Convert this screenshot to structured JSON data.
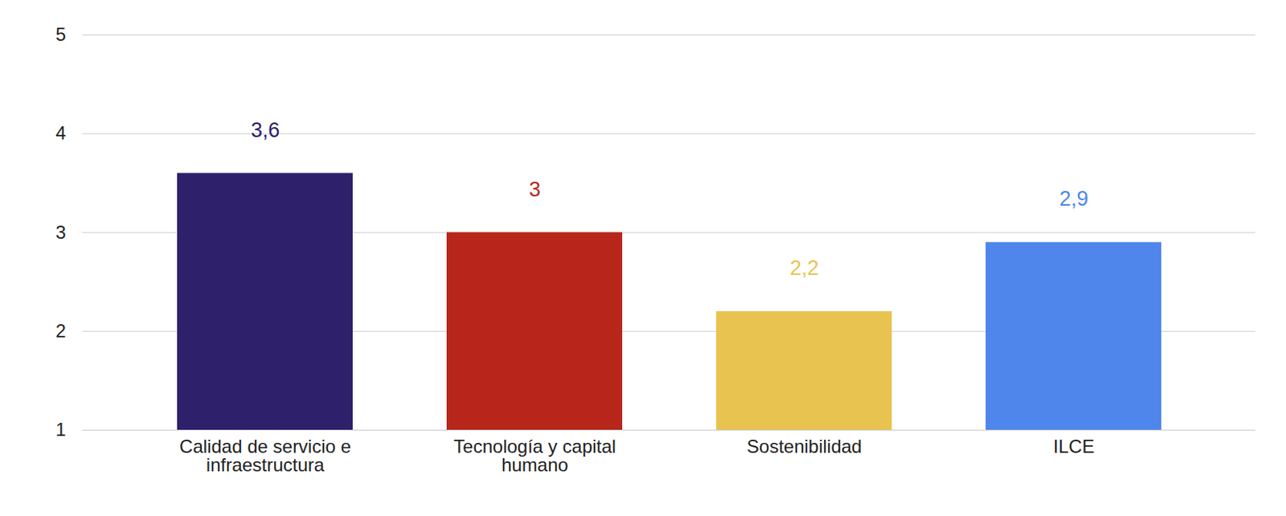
{
  "chart_data": {
    "type": "bar",
    "categories": [
      "Calidad de servicio e infraestructura",
      "Tecnología y capital humano",
      "Sostenibilidad",
      "ILCE"
    ],
    "values": [
      3.6,
      3,
      2.2,
      2.9
    ],
    "value_labels": [
      "3,6",
      "3",
      "2,2",
      "2,9"
    ],
    "colors": [
      "#2e206b",
      "#b8261b",
      "#e9c350",
      "#4f86ec"
    ],
    "ylim": [
      1,
      5
    ],
    "yticks": [
      1,
      2,
      3,
      4,
      5
    ],
    "grid": true,
    "data_labels": true
  }
}
